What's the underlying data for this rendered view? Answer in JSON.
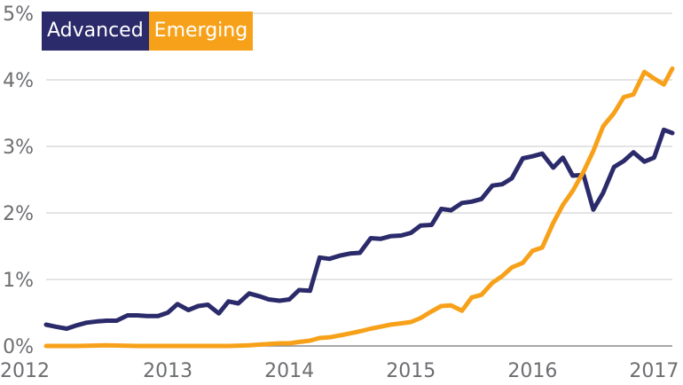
{
  "chart_data": {
    "type": "line",
    "title": "",
    "xlabel": "",
    "ylabel": "",
    "xlim": [
      2012,
      2017.15
    ],
    "ylim": [
      0,
      5
    ],
    "x_ticks": [
      "2012",
      "2013",
      "2014",
      "2015",
      "2016",
      "2017"
    ],
    "y_ticks": [
      "0%",
      "1%",
      "2%",
      "3%",
      "4%",
      "5%"
    ],
    "grid": true,
    "legend": "top-left",
    "series": [
      {
        "name": "Advanced",
        "color": "#2b2a6b",
        "points": [
          [
            2012.0,
            0.32
          ],
          [
            2012.08,
            0.29
          ],
          [
            2012.17,
            0.26
          ],
          [
            2012.25,
            0.31
          ],
          [
            2012.33,
            0.35
          ],
          [
            2012.42,
            0.37
          ],
          [
            2012.5,
            0.38
          ],
          [
            2012.58,
            0.38
          ],
          [
            2012.67,
            0.46
          ],
          [
            2012.75,
            0.46
          ],
          [
            2012.83,
            0.45
          ],
          [
            2012.92,
            0.45
          ],
          [
            2013.0,
            0.5
          ],
          [
            2013.08,
            0.63
          ],
          [
            2013.17,
            0.54
          ],
          [
            2013.25,
            0.6
          ],
          [
            2013.33,
            0.62
          ],
          [
            2013.42,
            0.49
          ],
          [
            2013.5,
            0.67
          ],
          [
            2013.58,
            0.64
          ],
          [
            2013.67,
            0.79
          ],
          [
            2013.75,
            0.75
          ],
          [
            2013.83,
            0.7
          ],
          [
            2013.92,
            0.68
          ],
          [
            2014.0,
            0.7
          ],
          [
            2014.08,
            0.84
          ],
          [
            2014.17,
            0.83
          ],
          [
            2014.25,
            1.33
          ],
          [
            2014.33,
            1.31
          ],
          [
            2014.42,
            1.36
          ],
          [
            2014.5,
            1.39
          ],
          [
            2014.58,
            1.4
          ],
          [
            2014.67,
            1.62
          ],
          [
            2014.75,
            1.61
          ],
          [
            2014.83,
            1.65
          ],
          [
            2014.92,
            1.66
          ],
          [
            2015.0,
            1.7
          ],
          [
            2015.08,
            1.81
          ],
          [
            2015.17,
            1.82
          ],
          [
            2015.25,
            2.06
          ],
          [
            2015.33,
            2.04
          ],
          [
            2015.42,
            2.15
          ],
          [
            2015.5,
            2.17
          ],
          [
            2015.58,
            2.21
          ],
          [
            2015.67,
            2.41
          ],
          [
            2015.75,
            2.43
          ],
          [
            2015.83,
            2.52
          ],
          [
            2015.92,
            2.82
          ],
          [
            2016.0,
            2.85
          ],
          [
            2016.08,
            2.89
          ],
          [
            2016.17,
            2.68
          ],
          [
            2016.25,
            2.83
          ],
          [
            2016.33,
            2.56
          ],
          [
            2016.42,
            2.57
          ],
          [
            2016.5,
            2.05
          ],
          [
            2016.58,
            2.3
          ],
          [
            2016.67,
            2.69
          ],
          [
            2016.75,
            2.78
          ],
          [
            2016.83,
            2.91
          ],
          [
            2016.92,
            2.77
          ],
          [
            2017.0,
            2.83
          ],
          [
            2017.08,
            3.25
          ],
          [
            2017.15,
            3.2
          ]
        ]
      },
      {
        "name": "Emerging",
        "color": "#f7a11a",
        "points": [
          [
            2012.0,
            0.0
          ],
          [
            2012.25,
            0.0
          ],
          [
            2012.5,
            0.01
          ],
          [
            2012.75,
            0.0
          ],
          [
            2013.0,
            0.0
          ],
          [
            2013.25,
            0.0
          ],
          [
            2013.5,
            0.0
          ],
          [
            2013.67,
            0.01
          ],
          [
            2013.75,
            0.02
          ],
          [
            2013.92,
            0.04
          ],
          [
            2014.0,
            0.04
          ],
          [
            2014.08,
            0.06
          ],
          [
            2014.17,
            0.08
          ],
          [
            2014.25,
            0.12
          ],
          [
            2014.33,
            0.13
          ],
          [
            2014.42,
            0.16
          ],
          [
            2014.5,
            0.19
          ],
          [
            2014.58,
            0.22
          ],
          [
            2014.67,
            0.26
          ],
          [
            2014.75,
            0.29
          ],
          [
            2014.83,
            0.32
          ],
          [
            2014.92,
            0.34
          ],
          [
            2015.0,
            0.36
          ],
          [
            2015.08,
            0.42
          ],
          [
            2015.17,
            0.52
          ],
          [
            2015.25,
            0.6
          ],
          [
            2015.33,
            0.61
          ],
          [
            2015.42,
            0.53
          ],
          [
            2015.5,
            0.73
          ],
          [
            2015.58,
            0.77
          ],
          [
            2015.67,
            0.95
          ],
          [
            2015.75,
            1.05
          ],
          [
            2015.83,
            1.18
          ],
          [
            2015.92,
            1.25
          ],
          [
            2016.0,
            1.43
          ],
          [
            2016.08,
            1.48
          ],
          [
            2016.17,
            1.85
          ],
          [
            2016.25,
            2.12
          ],
          [
            2016.33,
            2.33
          ],
          [
            2016.42,
            2.62
          ],
          [
            2016.5,
            2.93
          ],
          [
            2016.58,
            3.3
          ],
          [
            2016.67,
            3.5
          ],
          [
            2016.75,
            3.74
          ],
          [
            2016.83,
            3.78
          ],
          [
            2016.92,
            4.12
          ],
          [
            2017.0,
            4.02
          ],
          [
            2017.08,
            3.93
          ],
          [
            2017.15,
            4.17
          ]
        ]
      }
    ]
  }
}
